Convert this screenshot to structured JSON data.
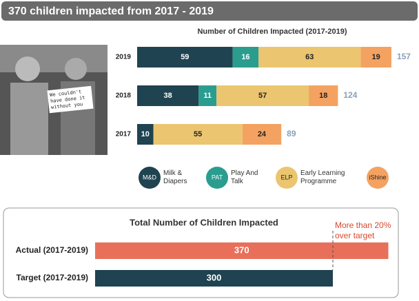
{
  "header": {
    "title": "370 children impacted from 2017 - 2019"
  },
  "photo": {
    "sign_text": "We couldn't have done it without you"
  },
  "chart_data": [
    {
      "type": "stacked-barh",
      "title": "Number of Children Impacted (2017-2019)",
      "categories": [
        "2019",
        "2018",
        "2017"
      ],
      "series": [
        {
          "name": "Milk & Diapers",
          "short": "M&D",
          "color": "#1f4350",
          "label_color": "#ffffff",
          "values": [
            59,
            38,
            10
          ]
        },
        {
          "name": "Play And Talk",
          "short": "PAT",
          "color": "#2a9d8f",
          "label_color": "#ffffff",
          "values": [
            16,
            11,
            null
          ]
        },
        {
          "name": "Early Learning Programme",
          "short": "ELP",
          "color": "#ebc56f",
          "label_color": "#222222",
          "values": [
            63,
            57,
            55
          ]
        },
        {
          "name": "iShine",
          "short": "iShine",
          "color": "#f4a261",
          "label_color": "#222222",
          "values": [
            19,
            18,
            24
          ]
        }
      ],
      "totals": [
        157,
        124,
        89
      ],
      "totals_color": "#8aa0b8",
      "xlim": [
        0,
        160
      ]
    },
    {
      "type": "barh",
      "title": "Total Number of Children Impacted",
      "categories": [
        "Actual (2017-2019)",
        "Target (2017-2019)"
      ],
      "values": [
        370,
        300
      ],
      "colors": [
        "#e8705a",
        "#1f4350"
      ],
      "xlim": [
        0,
        380
      ],
      "annotation": {
        "text": "More than 20% over target",
        "color": "#d9472b"
      }
    }
  ]
}
